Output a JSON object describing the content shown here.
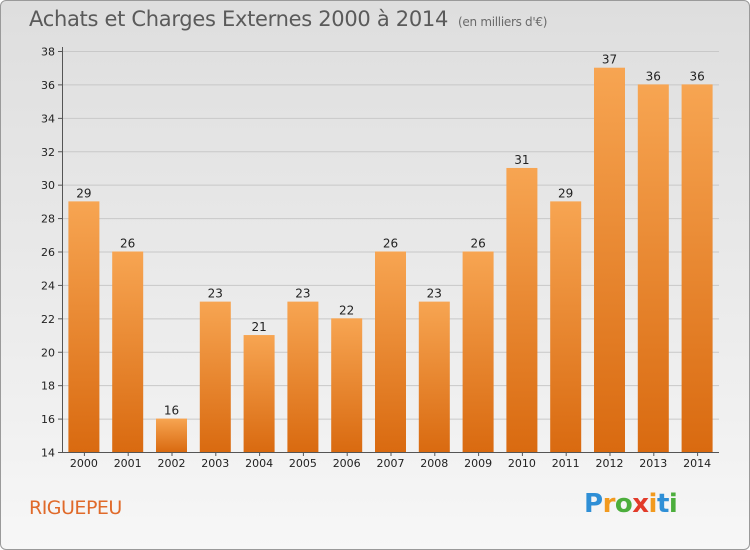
{
  "title": "Achats et Charges Externes 2000 à 2014",
  "subtitle": "(en milliers d'€)",
  "commune": "RIGUEPEU",
  "logo": {
    "letters": [
      {
        "char": "P",
        "color": "#2f8fd6"
      },
      {
        "char": "r",
        "color": "#f29a1e"
      },
      {
        "char": "o",
        "color": "#4cae3c"
      },
      {
        "char": "x",
        "color": "#e23b2a"
      },
      {
        "char": "i",
        "color": "#f29a1e"
      },
      {
        "char": "t",
        "color": "#2f8fd6"
      },
      {
        "char": "i",
        "color": "#4cae3c"
      }
    ]
  },
  "chart_data": {
    "type": "bar",
    "categories": [
      "2000",
      "2001",
      "2002",
      "2003",
      "2004",
      "2005",
      "2006",
      "2007",
      "2008",
      "2009",
      "2010",
      "2011",
      "2012",
      "2013",
      "2014"
    ],
    "values": [
      29,
      26,
      16,
      23,
      21,
      23,
      22,
      26,
      23,
      26,
      31,
      29,
      37,
      36,
      36
    ],
    "ylim": [
      14,
      38
    ],
    "yticks": [
      14,
      16,
      18,
      20,
      22,
      24,
      26,
      28,
      30,
      32,
      34,
      36,
      38
    ],
    "grid": true,
    "colors": {
      "bar_light": "#f7a552",
      "bar_dark": "#d96a10",
      "grid": "#c8c8c8",
      "axis": "#555555"
    }
  }
}
